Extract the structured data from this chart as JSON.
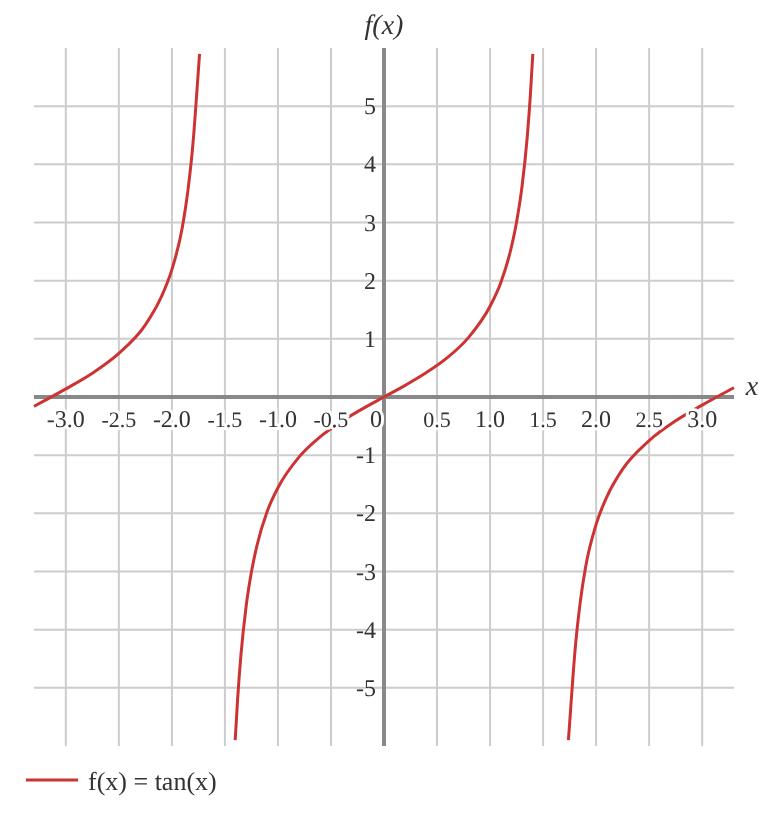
{
  "chart_data": {
    "type": "line",
    "xlabel": "x",
    "ylabel": "f(x)",
    "xlim": [
      -3.3,
      3.3
    ],
    "ylim": [
      -6,
      6
    ],
    "xticks": [
      {
        "value": -3,
        "label": "-3.0"
      },
      {
        "value": -2.5,
        "label": "-2.5"
      },
      {
        "value": -2,
        "label": "-2.0"
      },
      {
        "value": -1.5,
        "label": "-1.5"
      },
      {
        "value": -1,
        "label": "-1.0"
      },
      {
        "value": -0.5,
        "label": "-0.5"
      },
      0,
      {
        "value": 0.5,
        "label": "0.5"
      },
      {
        "value": 1,
        "label": "1.0"
      },
      {
        "value": 1.5,
        "label": "1.5"
      },
      {
        "value": 2,
        "label": "2.0"
      },
      {
        "value": 2.5,
        "label": "2.5"
      },
      {
        "value": 3,
        "label": "3.0"
      }
    ],
    "yticks": [
      -5,
      -4,
      -3,
      -2,
      -1,
      1,
      2,
      3,
      4,
      5
    ],
    "grid": true,
    "legend": "bottom left",
    "marker": "none",
    "line_style": "solid",
    "series": [
      {
        "name": "f(x) = tan(x)",
        "color": "#cc3333",
        "x": [
          -3.3,
          -3.0,
          -2.75,
          -2.5,
          -2.25,
          -2.1,
          -2.0,
          -1.9,
          -1.85,
          -1.8,
          -1.76,
          -1.739,
          -1.57,
          -1.403,
          -1.38,
          -1.35,
          -1.3,
          -1.25,
          -1.2,
          -1.1,
          -1.0,
          -0.8,
          -0.6,
          -0.4,
          -0.2,
          0,
          0.2,
          0.4,
          0.6,
          0.8,
          1.0,
          1.1,
          1.2,
          1.25,
          1.3,
          1.35,
          1.38,
          1.403,
          1.57,
          1.739,
          1.76,
          1.8,
          1.85,
          1.9,
          2.0,
          2.1,
          2.25,
          2.5,
          2.75,
          3.0,
          3.3
        ],
        "values": [
          -0.16,
          0.14,
          0.41,
          0.75,
          1.24,
          1.72,
          2.19,
          2.93,
          3.53,
          4.38,
          5.36,
          5.9,
          null,
          -5.9,
          -5.19,
          -4.46,
          -3.6,
          -3.01,
          -2.57,
          -1.96,
          -1.56,
          -1.03,
          -0.68,
          -0.42,
          -0.2,
          0,
          0.2,
          0.42,
          0.68,
          1.03,
          1.56,
          1.96,
          2.57,
          3.01,
          3.6,
          4.46,
          5.19,
          5.9,
          null,
          -5.9,
          -5.36,
          -4.38,
          -3.53,
          -2.93,
          -2.19,
          -1.72,
          -1.24,
          -0.75,
          -0.41,
          -0.14,
          0.16
        ]
      }
    ]
  }
}
